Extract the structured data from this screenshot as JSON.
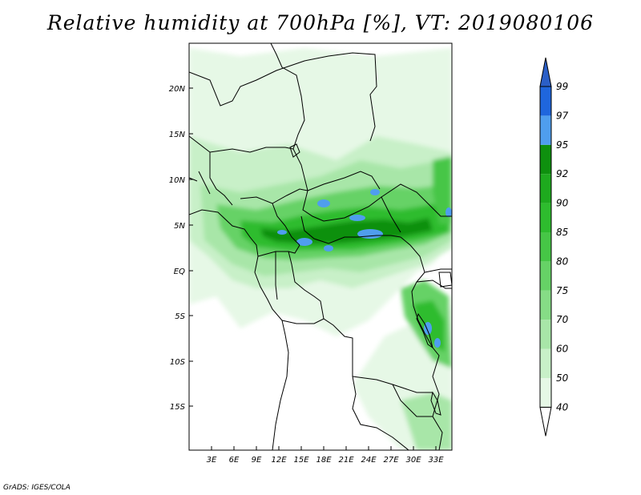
{
  "title": "Relative humidity at 700hPa [%], VT: 2019080106",
  "credit": "GrADS: IGES/COLA",
  "latitude_labels": [
    "20N",
    "15N",
    "10N",
    "5N",
    "EQ",
    "5S",
    "10S",
    "15S"
  ],
  "longitude_labels": [
    "3E",
    "6E",
    "9E",
    "12E",
    "15E",
    "18E",
    "21E",
    "24E",
    "27E",
    "30E",
    "33E"
  ],
  "colorbar": {
    "levels": [
      "40",
      "50",
      "60",
      "70",
      "75",
      "80",
      "85",
      "90",
      "92",
      "95",
      "97",
      "99"
    ],
    "colors": [
      "#ffffff",
      "#e6f8e6",
      "#c8f0c8",
      "#a8e6a8",
      "#86dc86",
      "#66d266",
      "#46c646",
      "#2ebc2e",
      "#1eaa1e",
      "#0e900e",
      "#4f9eee",
      "#1f66dd",
      "#2b5fc7"
    ]
  },
  "colors": {
    "land_low": "#e6f8e6",
    "land_mid": "#a8e6a8",
    "land_high": "#46c646",
    "land_very_high": "#0e900e",
    "saturated": "#4f9eee"
  }
}
